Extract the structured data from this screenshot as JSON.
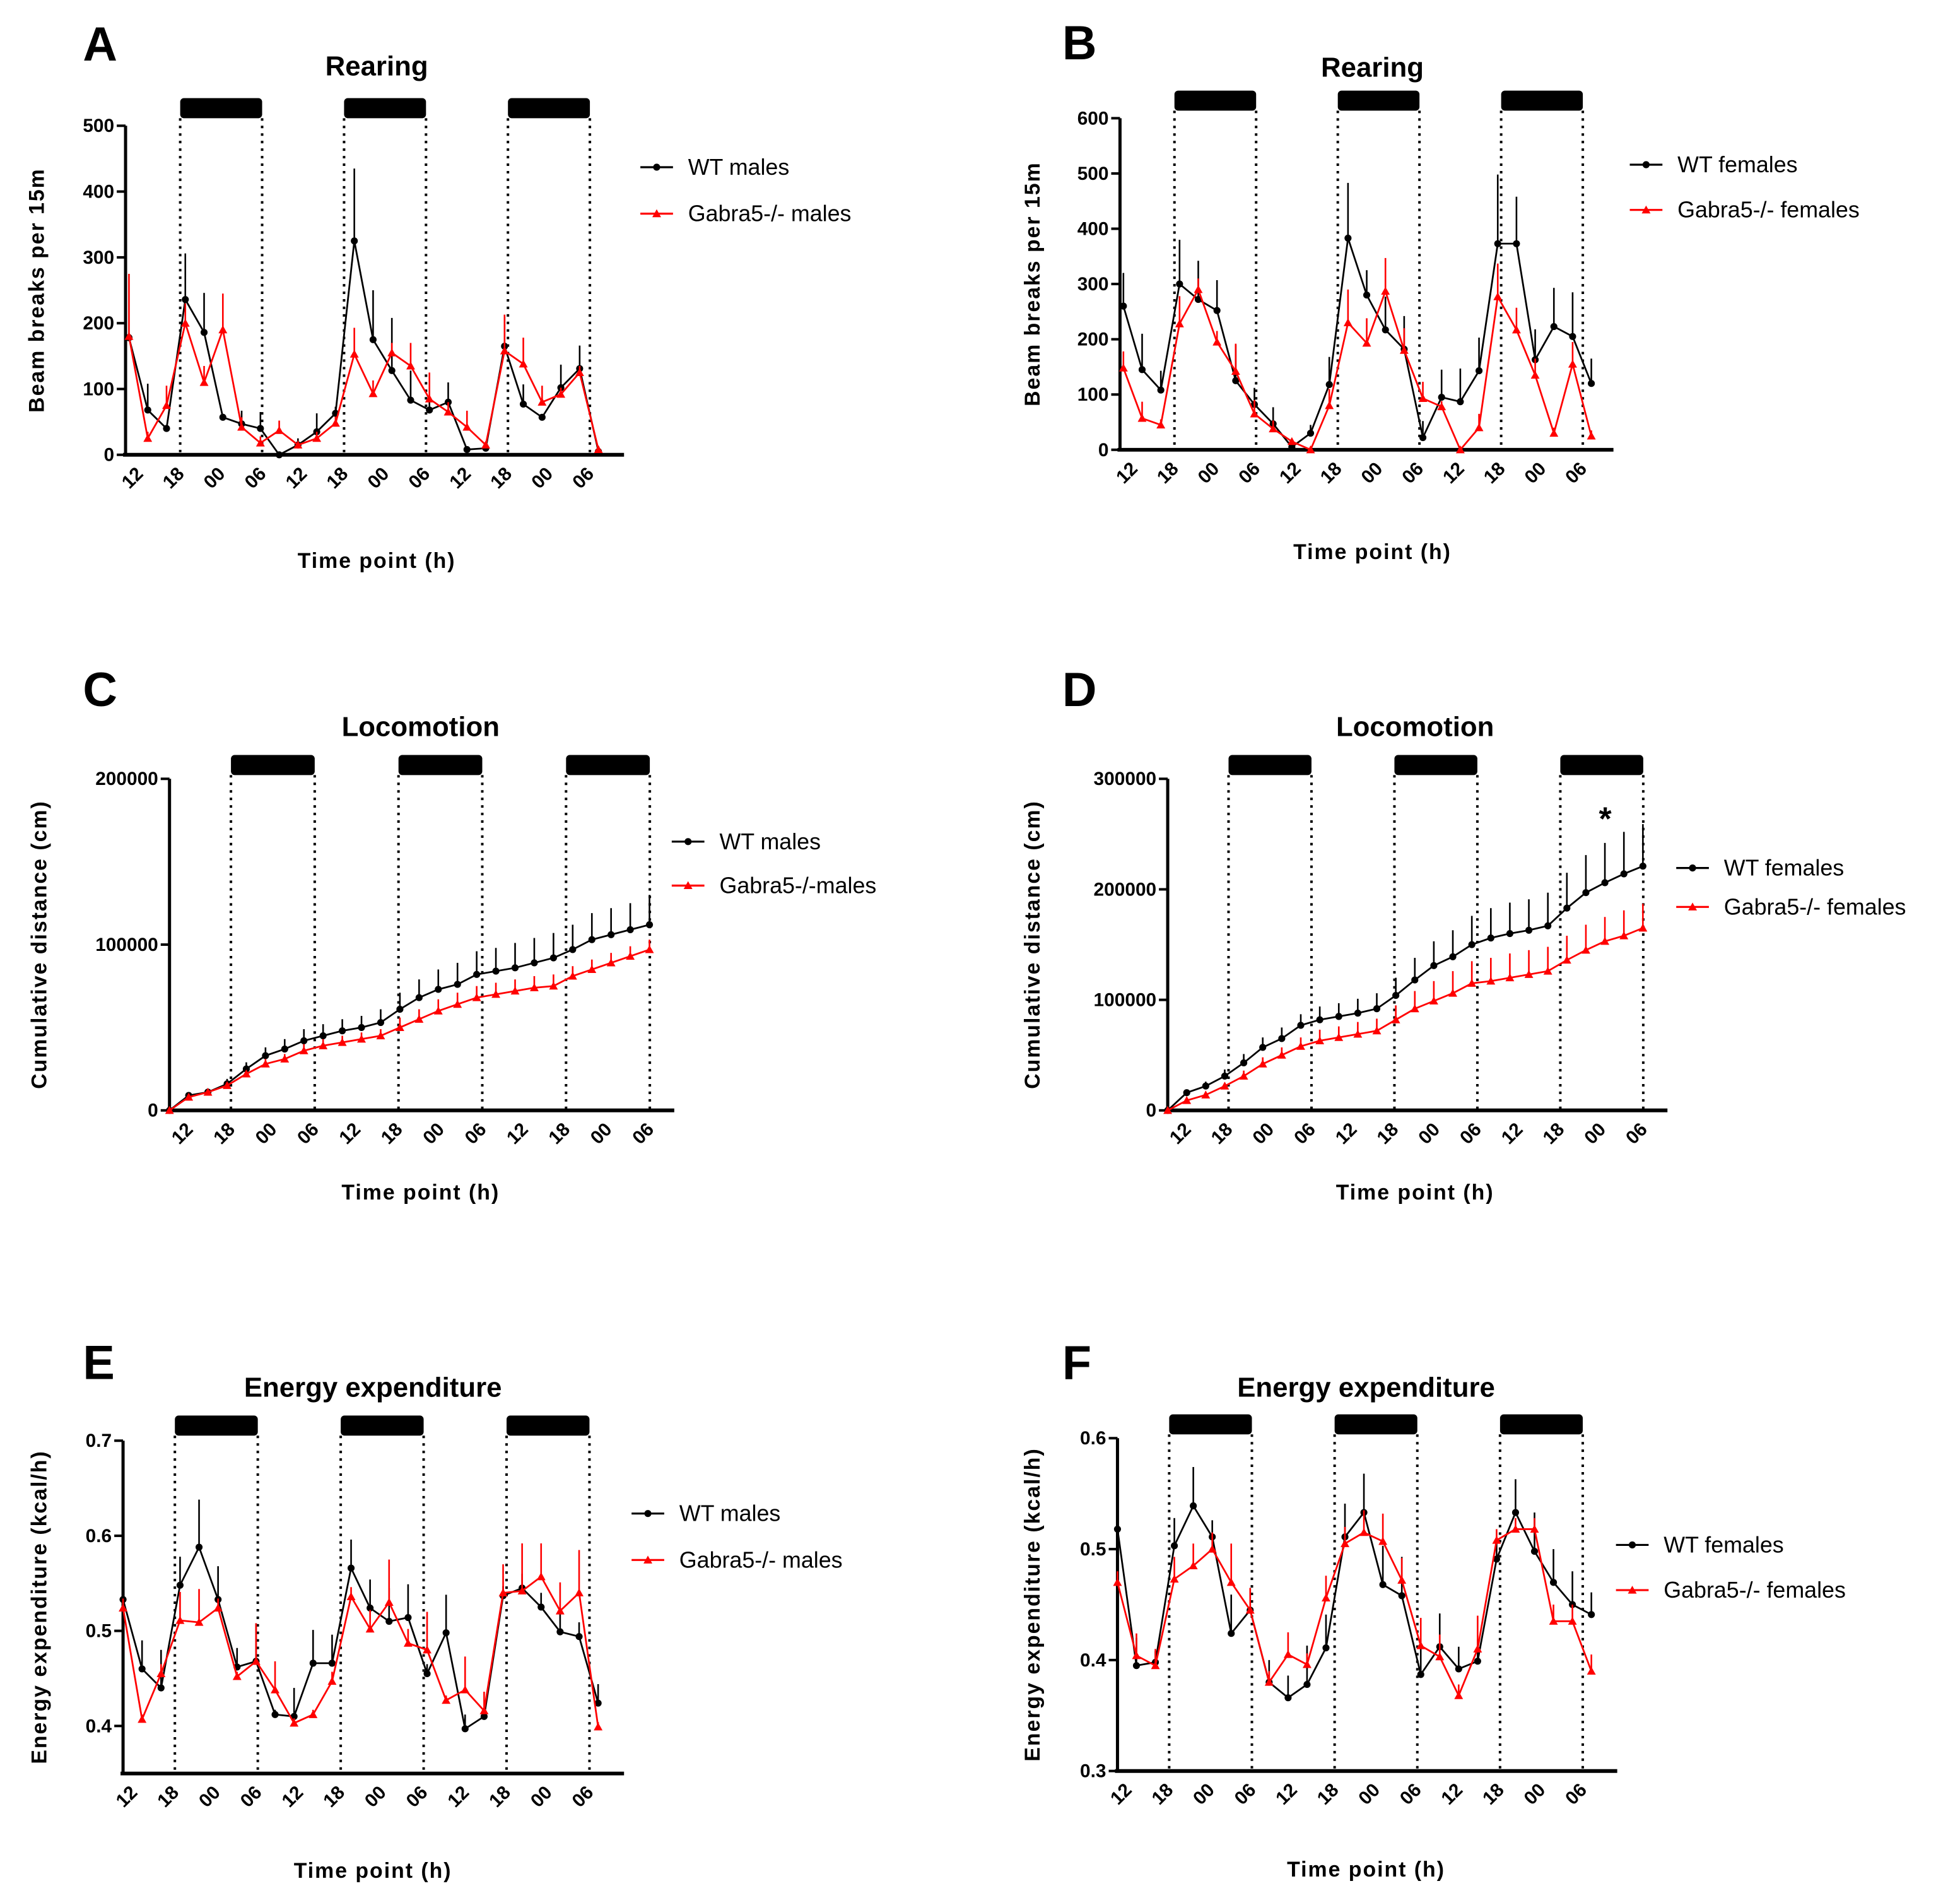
{
  "colors": {
    "wt": "#000000",
    "ko": "#ff0000"
  },
  "chart_data": [
    {
      "panel": "A",
      "type": "line",
      "title": "Rearing",
      "ylabel": "Beam breaks per 15m",
      "xlabel": "Time point (h)",
      "ylim": [
        0,
        500
      ],
      "yticks": [
        0,
        100,
        200,
        300,
        400,
        500
      ],
      "ytick_labels": [
        "0",
        "100",
        "200",
        "300",
        "400",
        "500"
      ],
      "xlim": [
        10,
        83
      ],
      "x_start_h": 10.5,
      "x_step_h": 2.75,
      "xticks_h": [
        12,
        18,
        24,
        30,
        36,
        42,
        48,
        54,
        60,
        66,
        72,
        78
      ],
      "xtick_labels": [
        "12",
        "18",
        "00",
        "06",
        "12",
        "18",
        "00",
        "06",
        "12",
        "18",
        "00",
        "06"
      ],
      "dark_periods_h": [
        [
          18,
          30
        ],
        [
          42,
          54
        ],
        [
          66,
          78
        ]
      ],
      "series": [
        {
          "name": "WT males",
          "color": "#000000",
          "marker": "circle",
          "values": [
            178,
            68,
            40,
            236,
            186,
            57,
            47,
            40,
            0,
            15,
            35,
            63,
            325,
            175,
            128,
            83,
            68,
            80,
            8,
            10,
            165,
            77,
            57,
            102,
            131,
            5
          ],
          "sem": [
            0,
            40,
            0,
            70,
            60,
            5,
            20,
            25,
            0,
            10,
            28,
            10,
            110,
            75,
            80,
            45,
            20,
            30,
            5,
            5,
            45,
            30,
            5,
            35,
            35,
            5
          ]
        },
        {
          "name": "Gabra5-/- males",
          "color": "#ff0000",
          "marker": "triangle",
          "values": [
            180,
            25,
            75,
            200,
            110,
            190,
            42,
            18,
            37,
            15,
            25,
            48,
            153,
            93,
            155,
            135,
            85,
            65,
            42,
            15,
            158,
            138,
            80,
            92,
            125,
            8
          ],
          "sem": [
            95,
            10,
            30,
            30,
            25,
            55,
            15,
            10,
            15,
            5,
            10,
            10,
            40,
            20,
            15,
            35,
            40,
            15,
            25,
            5,
            55,
            40,
            25,
            10,
            10,
            5
          ]
        }
      ]
    },
    {
      "panel": "B",
      "type": "line",
      "title": "Rearing",
      "ylabel": "Beam breaks per 15m",
      "xlabel": "Time point (h)",
      "ylim": [
        0,
        600
      ],
      "yticks": [
        0,
        100,
        200,
        300,
        400,
        500,
        600
      ],
      "ytick_labels": [
        "0",
        "100",
        "200",
        "300",
        "400",
        "500",
        "600"
      ],
      "xlim": [
        10,
        82.5
      ],
      "x_start_h": 10.5,
      "x_step_h": 2.75,
      "xticks_h": [
        12,
        18,
        24,
        30,
        36,
        42,
        48,
        54,
        60,
        66,
        72,
        78
      ],
      "xtick_labels": [
        "12",
        "18",
        "00",
        "06",
        "12",
        "18",
        "00",
        "06",
        "12",
        "18",
        "00",
        "06"
      ],
      "dark_periods_h": [
        [
          18,
          30
        ],
        [
          42,
          54
        ],
        [
          66,
          78
        ]
      ],
      "series": [
        {
          "name": "WT females",
          "color": "#000000",
          "marker": "circle",
          "values": [
            260,
            145,
            108,
            300,
            272,
            252,
            125,
            82,
            47,
            5,
            30,
            118,
            383,
            280,
            217,
            182,
            22,
            95,
            87,
            143,
            373,
            373,
            163,
            223,
            205,
            120
          ],
          "sem": [
            60,
            65,
            35,
            80,
            70,
            55,
            65,
            30,
            30,
            10,
            15,
            50,
            100,
            45,
            60,
            60,
            30,
            50,
            60,
            60,
            125,
            85,
            55,
            70,
            80,
            45
          ]
        },
        {
          "name": "Gabra5-/- females",
          "color": "#ff0000",
          "marker": "triangle",
          "values": [
            148,
            57,
            45,
            228,
            290,
            195,
            142,
            65,
            38,
            15,
            0,
            80,
            230,
            193,
            287,
            180,
            93,
            78,
            0,
            40,
            277,
            217,
            135,
            30,
            155,
            25
          ],
          "sem": [
            30,
            30,
            10,
            50,
            20,
            20,
            50,
            25,
            15,
            5,
            5,
            30,
            60,
            45,
            60,
            40,
            30,
            10,
            0,
            25,
            60,
            40,
            30,
            10,
            40,
            10
          ]
        }
      ]
    },
    {
      "panel": "C",
      "type": "line",
      "title": "Locomotion",
      "ylabel": "Cumulative distance (cm)",
      "xlabel": "Time point (h)",
      "ylim": [
        0,
        200000
      ],
      "yticks": [
        0,
        100000,
        200000
      ],
      "ytick_labels": [
        "0",
        "100000",
        "200000"
      ],
      "xlim": [
        9.2,
        81.5
      ],
      "x_start_h": 9.2,
      "x_step_h": 2.75,
      "xticks_h": [
        12,
        18,
        24,
        30,
        36,
        42,
        48,
        54,
        60,
        66,
        72,
        78
      ],
      "xtick_labels": [
        "12",
        "18",
        "00",
        "06",
        "12",
        "18",
        "00",
        "06",
        "12",
        "18",
        "00",
        "06"
      ],
      "dark_periods_h": [
        [
          18,
          30
        ],
        [
          42,
          54
        ],
        [
          66,
          78
        ]
      ],
      "series": [
        {
          "name": "WT males",
          "color": "#000000",
          "marker": "circle",
          "values": [
            0,
            9000,
            11000,
            16000,
            25000,
            33000,
            37000,
            42000,
            45000,
            48000,
            50000,
            53000,
            61000,
            68000,
            73000,
            76000,
            82000,
            84000,
            86000,
            89000,
            92000,
            97000,
            103000,
            106000,
            109000,
            112000
          ],
          "sem": [
            0,
            1000,
            1000,
            3000,
            4000,
            5000,
            6000,
            7000,
            7000,
            7000,
            7000,
            8000,
            10000,
            11000,
            12000,
            13000,
            14000,
            14000,
            15000,
            15000,
            15000,
            15000,
            16000,
            16000,
            16000,
            18000
          ]
        },
        {
          "name": "Gabra5-/-males",
          "color": "#ff0000",
          "marker": "triangle",
          "values": [
            0,
            8000,
            11000,
            15000,
            22000,
            28000,
            31000,
            36000,
            39000,
            41000,
            43000,
            45000,
            50000,
            55000,
            60000,
            64000,
            68000,
            70000,
            72000,
            74000,
            75000,
            81000,
            85000,
            89000,
            93000,
            97000
          ],
          "sem": [
            0,
            1000,
            1000,
            2000,
            2000,
            3000,
            3000,
            4000,
            4000,
            4000,
            4000,
            4000,
            6000,
            6000,
            7000,
            7000,
            7000,
            7000,
            7000,
            7000,
            7000,
            6000,
            6000,
            6000,
            6000,
            6000
          ]
        }
      ]
    },
    {
      "panel": "D",
      "type": "line",
      "title": "Locomotion",
      "ylabel": "Cumulative distance (cm)",
      "xlabel": "Time point (h)",
      "ylim": [
        0,
        300000
      ],
      "yticks": [
        0,
        100000,
        200000,
        300000
      ],
      "ytick_labels": [
        "0",
        "100000",
        "200000",
        "300000"
      ],
      "xlim": [
        9.2,
        81.5
      ],
      "x_start_h": 9.2,
      "x_step_h": 2.75,
      "xticks_h": [
        12,
        18,
        24,
        30,
        36,
        42,
        48,
        54,
        60,
        66,
        72,
        78
      ],
      "xtick_labels": [
        "12",
        "18",
        "00",
        "06",
        "12",
        "18",
        "00",
        "06",
        "12",
        "18",
        "00",
        "06"
      ],
      "dark_periods_h": [
        [
          18,
          30
        ],
        [
          42,
          54
        ],
        [
          66,
          78
        ]
      ],
      "annotation": {
        "text": "*",
        "x_h": 72.5,
        "y": 265000
      },
      "series": [
        {
          "name": "WT females",
          "color": "#000000",
          "marker": "circle",
          "values": [
            0,
            16000,
            22000,
            31000,
            43000,
            57000,
            65000,
            77000,
            82000,
            85000,
            88000,
            92000,
            104000,
            118000,
            131000,
            139000,
            150000,
            156000,
            160000,
            163000,
            167000,
            183000,
            197000,
            206000,
            214000,
            221000
          ],
          "sem": [
            0,
            3000,
            4000,
            6000,
            8000,
            9000,
            10000,
            10000,
            12000,
            12000,
            13000,
            14000,
            16000,
            20000,
            22000,
            24000,
            26000,
            27000,
            28000,
            28000,
            30000,
            32000,
            34000,
            36000,
            38000,
            38000
          ]
        },
        {
          "name": "Gabra5-/- females",
          "color": "#ff0000",
          "marker": "triangle",
          "values": [
            0,
            9000,
            14000,
            22000,
            31000,
            42000,
            50000,
            58000,
            63000,
            66000,
            69000,
            72000,
            82000,
            92000,
            99000,
            106000,
            115000,
            117000,
            120000,
            123000,
            126000,
            136000,
            145000,
            153000,
            158000,
            165000
          ],
          "sem": [
            0,
            2000,
            2000,
            3000,
            5000,
            6000,
            7000,
            8000,
            10000,
            10000,
            11000,
            11000,
            13000,
            16000,
            18000,
            20000,
            20000,
            21000,
            22000,
            22000,
            22000,
            22000,
            23000,
            22000,
            23000,
            22000
          ]
        }
      ]
    },
    {
      "panel": "E",
      "type": "line",
      "title": "Energy expenditure",
      "ylabel": "Energy expenditure (kcal/h)",
      "xlabel": "Time point (h)",
      "ylim": [
        0.35,
        0.7
      ],
      "yticks": [
        0.4,
        0.5,
        0.6,
        0.7
      ],
      "ytick_labels": [
        "0.4",
        "0.5",
        "0.6",
        "0.7"
      ],
      "xlim": [
        10.5,
        83
      ],
      "x_start_h": 10.5,
      "x_step_h": 2.75,
      "xticks_h": [
        12,
        18,
        24,
        30,
        36,
        42,
        48,
        54,
        60,
        66,
        72,
        78
      ],
      "xtick_labels": [
        "12",
        "18",
        "00",
        "06",
        "12",
        "18",
        "00",
        "06",
        "12",
        "18",
        "00",
        "06"
      ],
      "dark_periods_h": [
        [
          18,
          30
        ],
        [
          42,
          54
        ],
        [
          66,
          78
        ]
      ],
      "series": [
        {
          "name": "WT males",
          "color": "#000000",
          "marker": "circle",
          "values": [
            0.533,
            0.46,
            0.44,
            0.548,
            0.588,
            0.533,
            0.462,
            0.468,
            0.412,
            0.41,
            0.466,
            0.466,
            0.566,
            0.524,
            0.51,
            0.514,
            0.455,
            0.498,
            0.397,
            0.41,
            0.537,
            0.545,
            0.525,
            0.499,
            0.494,
            0.424
          ],
          "sem": [
            0.01,
            0.03,
            0.04,
            0.03,
            0.05,
            0.035,
            0.02,
            0.04,
            0.005,
            0.03,
            0.035,
            0.03,
            0.03,
            0.03,
            0.035,
            0.035,
            0.01,
            0.04,
            0.015,
            0.005,
            0.01,
            0.015,
            0.015,
            0.02,
            0.015,
            0.02
          ]
        },
        {
          "name": "Gabra5-/- males",
          "color": "#ff0000",
          "marker": "triangle",
          "values": [
            0.524,
            0.407,
            0.455,
            0.511,
            0.509,
            0.524,
            0.452,
            0.468,
            0.438,
            0.403,
            0.412,
            0.447,
            0.536,
            0.502,
            0.53,
            0.487,
            0.48,
            0.427,
            0.438,
            0.416,
            0.54,
            0.542,
            0.557,
            0.521,
            0.54,
            0.399
          ],
          "sem": [
            0.01,
            0.005,
            0.01,
            0.03,
            0.035,
            0.01,
            0.005,
            0.04,
            0.03,
            0.005,
            0.005,
            0.01,
            0.01,
            0.02,
            0.045,
            0.015,
            0.04,
            0.005,
            0.035,
            0.02,
            0.03,
            0.05,
            0.035,
            0.03,
            0.045,
            0.005
          ]
        }
      ]
    },
    {
      "panel": "F",
      "type": "line",
      "title": "Energy expenditure",
      "ylabel": "Energy expenditure (kcal/h)",
      "xlabel": "Time point (h)",
      "ylim": [
        0.3,
        0.6
      ],
      "yticks": [
        0.3,
        0.4,
        0.5,
        0.6
      ],
      "ytick_labels": [
        "0.3",
        "0.4",
        "0.5",
        "0.6"
      ],
      "xlim": [
        10.5,
        83
      ],
      "x_start_h": 10.5,
      "x_step_h": 2.75,
      "xticks_h": [
        12,
        18,
        24,
        30,
        36,
        42,
        48,
        54,
        60,
        66,
        72,
        78
      ],
      "xtick_labels": [
        "12",
        "18",
        "00",
        "06",
        "12",
        "18",
        "00",
        "06",
        "12",
        "18",
        "00",
        "06"
      ],
      "dark_periods_h": [
        [
          18,
          30
        ],
        [
          42,
          54
        ],
        [
          66,
          78
        ]
      ],
      "series": [
        {
          "name": "WT females",
          "color": "#000000",
          "marker": "circle",
          "values": [
            0.518,
            0.395,
            0.398,
            0.503,
            0.539,
            0.511,
            0.424,
            0.445,
            0.38,
            0.366,
            0.378,
            0.411,
            0.511,
            0.533,
            0.468,
            0.458,
            0.387,
            0.412,
            0.392,
            0.399,
            0.491,
            0.533,
            0.498,
            0.47,
            0.45,
            0.441
          ],
          "sem": [
            0.01,
            0.025,
            0.01,
            0.025,
            0.035,
            0.015,
            0.035,
            0.02,
            0.02,
            0.02,
            0.035,
            0.03,
            0.03,
            0.035,
            0.035,
            0.035,
            0.025,
            0.03,
            0.02,
            0.02,
            0.02,
            0.03,
            0.035,
            0.03,
            0.03,
            0.02
          ]
        },
        {
          "name": "Gabra5-/- females",
          "color": "#ff0000",
          "marker": "triangle",
          "values": [
            0.47,
            0.404,
            0.395,
            0.473,
            0.485,
            0.5,
            0.47,
            0.445,
            0.38,
            0.405,
            0.396,
            0.456,
            0.505,
            0.515,
            0.507,
            0.472,
            0.413,
            0.403,
            0.368,
            0.41,
            0.508,
            0.518,
            0.518,
            0.435,
            0.435,
            0.39
          ],
          "sem": [
            0.01,
            0.02,
            0.015,
            0.02,
            0.02,
            0.015,
            0.035,
            0.02,
            0.01,
            0.02,
            0.01,
            0.02,
            0.015,
            0.02,
            0.025,
            0.02,
            0.025,
            0.02,
            0.01,
            0.03,
            0.01,
            0.01,
            0.01,
            0.015,
            0.015,
            0.015
          ]
        }
      ]
    }
  ]
}
